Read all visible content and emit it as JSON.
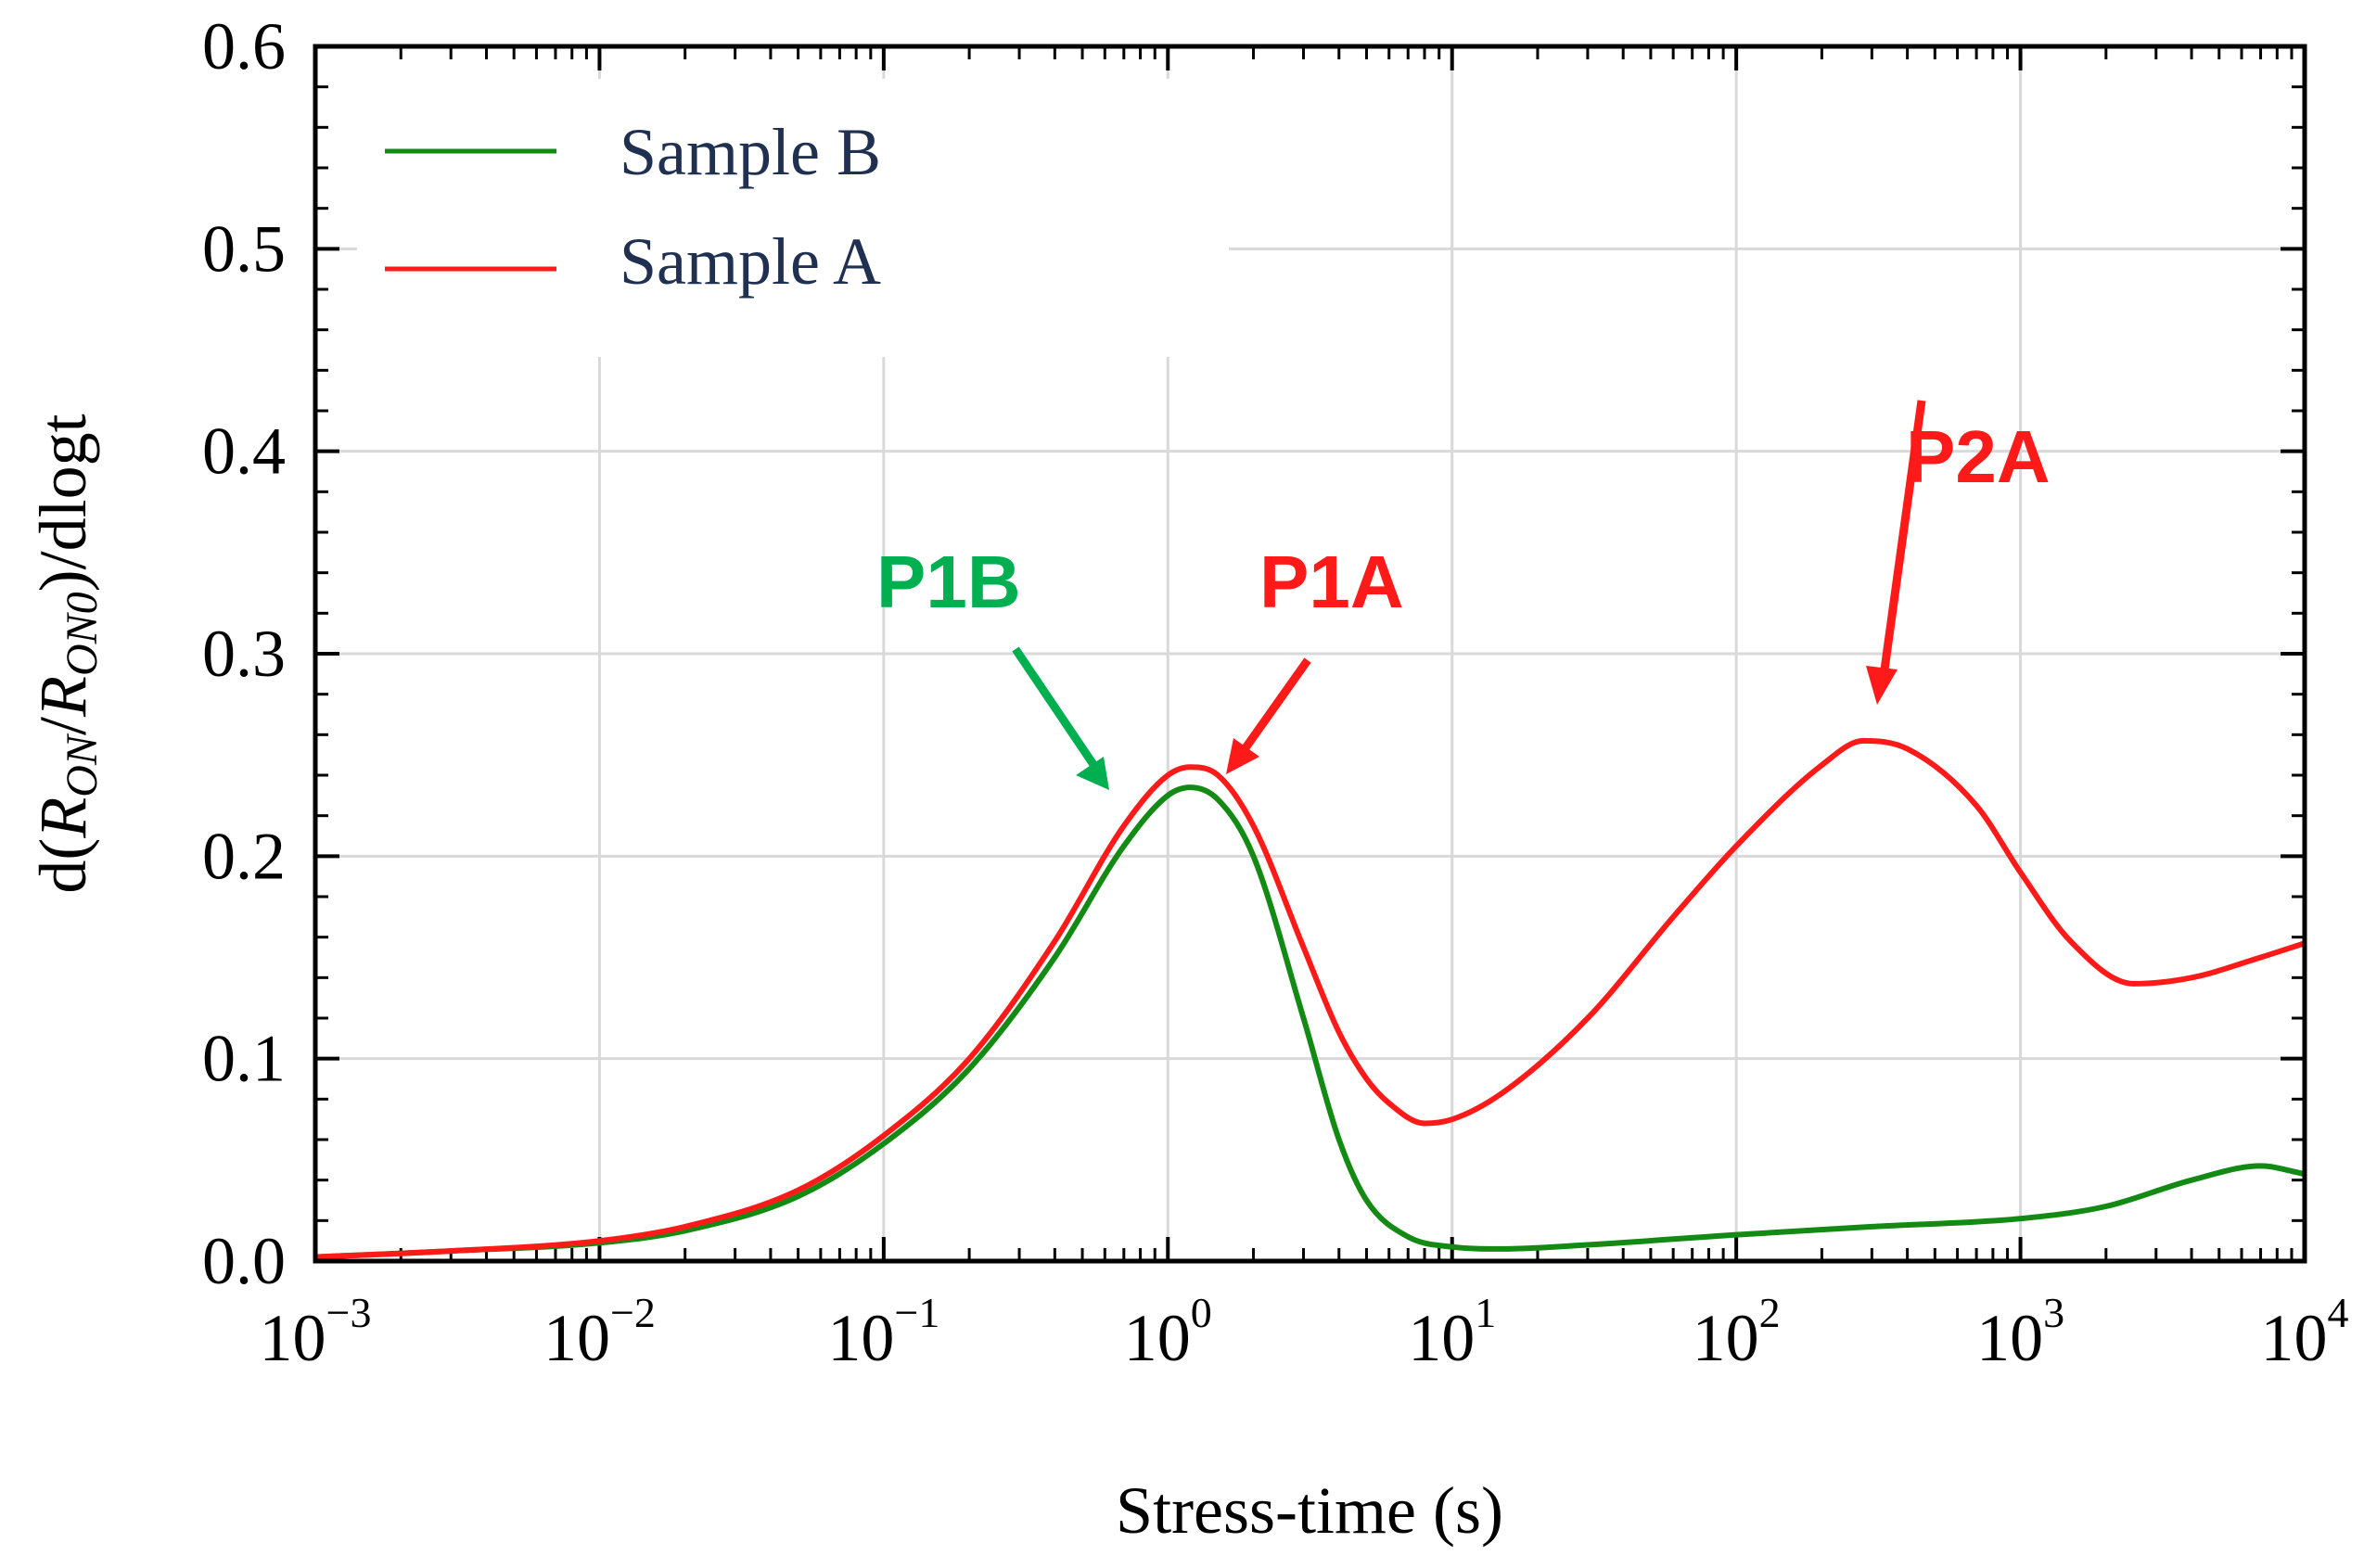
{
  "chart_data": {
    "type": "line",
    "title": "",
    "xlabel": "Stress-time (s)",
    "ylabel": {
      "prefix": "d(",
      "r_on": "R",
      "r_on_sub": "ON",
      "slash": "/",
      "r_on0": "R",
      "r_on0_sub": "ON0",
      "suffix": ")/dlogt"
    },
    "xscale": "log",
    "xlim": [
      0.001,
      10000
    ],
    "ylim": [
      0.0,
      0.6
    ],
    "grid": true,
    "legend_position": "top-left",
    "x_ticks": [
      {
        "base": "10",
        "exp": "−3",
        "value": 0.001
      },
      {
        "base": "10",
        "exp": "−2",
        "value": 0.01
      },
      {
        "base": "10",
        "exp": "−1",
        "value": 0.1
      },
      {
        "base": "10",
        "exp": "0",
        "value": 1
      },
      {
        "base": "10",
        "exp": "1",
        "value": 10
      },
      {
        "base": "10",
        "exp": "2",
        "value": 100
      },
      {
        "base": "10",
        "exp": "3",
        "value": 1000
      },
      {
        "base": "10",
        "exp": "4",
        "value": 10000
      }
    ],
    "y_ticks": [
      {
        "label": "0.0",
        "value": 0.0
      },
      {
        "label": "0.1",
        "value": 0.1
      },
      {
        "label": "0.2",
        "value": 0.2
      },
      {
        "label": "0.3",
        "value": 0.3
      },
      {
        "label": "0.4",
        "value": 0.4
      },
      {
        "label": "0.5",
        "value": 0.5
      },
      {
        "label": "0.6",
        "value": 0.6
      }
    ],
    "series": [
      {
        "name": "Sample B",
        "color": "#138a13",
        "x": [
          0.001,
          0.003,
          0.01,
          0.02,
          0.05,
          0.1,
          0.2,
          0.4,
          0.7,
          1.0,
          1.2,
          1.5,
          2.0,
          3.0,
          4.0,
          5.0,
          7.0,
          10,
          15,
          30,
          100,
          300,
          1000,
          2000,
          4000,
          7000,
          10000
        ],
        "y": [
          0.002,
          0.005,
          0.009,
          0.015,
          0.032,
          0.058,
          0.095,
          0.15,
          0.205,
          0.23,
          0.234,
          0.228,
          0.2,
          0.12,
          0.06,
          0.03,
          0.012,
          0.007,
          0.006,
          0.008,
          0.013,
          0.017,
          0.021,
          0.027,
          0.04,
          0.047,
          0.043
        ]
      },
      {
        "name": "Sample A",
        "color": "#ff1a1a",
        "x": [
          0.001,
          0.003,
          0.01,
          0.02,
          0.05,
          0.1,
          0.2,
          0.4,
          0.7,
          1.0,
          1.2,
          1.5,
          2.0,
          3.0,
          4.0,
          5.0,
          6.0,
          8.0,
          10,
          15,
          30,
          60,
          100,
          200,
          280,
          400,
          700,
          1000,
          1500,
          2500,
          4000,
          7000,
          10000
        ],
        "y": [
          0.002,
          0.005,
          0.01,
          0.017,
          0.035,
          0.062,
          0.1,
          0.158,
          0.215,
          0.24,
          0.244,
          0.24,
          0.215,
          0.155,
          0.113,
          0.09,
          0.078,
          0.068,
          0.07,
          0.083,
          0.12,
          0.17,
          0.205,
          0.245,
          0.257,
          0.253,
          0.225,
          0.192,
          0.158,
          0.137,
          0.14,
          0.15,
          0.157
        ]
      }
    ],
    "annotations": [
      {
        "text": "P1B",
        "color": "#00b050",
        "target_x": 0.65,
        "target_y": 0.227
      },
      {
        "text": "P1A",
        "color": "#ff1a1a",
        "target_x": 1.6,
        "target_y": 0.24
      },
      {
        "text": "P2A",
        "color": "#ff1a1a",
        "target_x": 270,
        "target_y": 0.275
      }
    ]
  }
}
